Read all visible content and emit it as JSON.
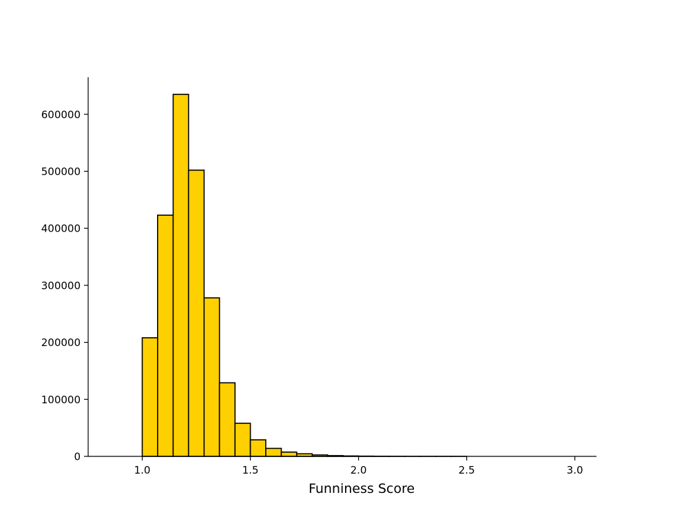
{
  "chart_data": {
    "type": "bar",
    "title": "",
    "xlabel": "Funniness Score",
    "ylabel": "",
    "xlim": [
      0.75,
      3.1
    ],
    "ylim": [
      0,
      665000
    ],
    "grid": false,
    "legend": "none",
    "bar_color": "#FFD000",
    "edge_color": "#000000",
    "x_ticks": [
      "1.0",
      "1.5",
      "2.0",
      "2.5",
      "3.0"
    ],
    "y_ticks": [
      "0",
      "100000",
      "200000",
      "300000",
      "400000",
      "500000",
      "600000"
    ],
    "bins": [
      {
        "start": 0.857,
        "end": 0.929,
        "count": 0
      },
      {
        "start": 0.929,
        "end": 1.0,
        "count": 0
      },
      {
        "start": 1.0,
        "end": 1.071,
        "count": 208000
      },
      {
        "start": 1.071,
        "end": 1.143,
        "count": 423000
      },
      {
        "start": 1.143,
        "end": 1.214,
        "count": 635000
      },
      {
        "start": 1.214,
        "end": 1.286,
        "count": 502000
      },
      {
        "start": 1.286,
        "end": 1.357,
        "count": 278000
      },
      {
        "start": 1.357,
        "end": 1.429,
        "count": 129000
      },
      {
        "start": 1.429,
        "end": 1.5,
        "count": 58000
      },
      {
        "start": 1.5,
        "end": 1.571,
        "count": 29000
      },
      {
        "start": 1.571,
        "end": 1.643,
        "count": 14000
      },
      {
        "start": 1.643,
        "end": 1.714,
        "count": 7500
      },
      {
        "start": 1.714,
        "end": 1.786,
        "count": 4500
      },
      {
        "start": 1.786,
        "end": 1.857,
        "count": 2500
      },
      {
        "start": 1.857,
        "end": 1.929,
        "count": 1300
      },
      {
        "start": 1.929,
        "end": 2.0,
        "count": 700
      },
      {
        "start": 2.0,
        "end": 2.071,
        "count": 400
      },
      {
        "start": 2.071,
        "end": 2.143,
        "count": 200
      },
      {
        "start": 2.143,
        "end": 2.214,
        "count": 100
      },
      {
        "start": 2.214,
        "end": 2.286,
        "count": 50
      },
      {
        "start": 2.286,
        "end": 2.357,
        "count": 30
      },
      {
        "start": 2.357,
        "end": 2.429,
        "count": 20
      },
      {
        "start": 2.429,
        "end": 2.5,
        "count": 10
      },
      {
        "start": 2.5,
        "end": 2.571,
        "count": 5
      },
      {
        "start": 2.571,
        "end": 2.643,
        "count": 3
      },
      {
        "start": 2.643,
        "end": 2.714,
        "count": 2
      },
      {
        "start": 2.714,
        "end": 2.786,
        "count": 1
      },
      {
        "start": 2.786,
        "end": 2.857,
        "count": 1
      },
      {
        "start": 2.857,
        "end": 2.929,
        "count": 1
      },
      {
        "start": 2.929,
        "end": 3.0,
        "count": 1
      },
      {
        "start": 3.0,
        "end": 3.071,
        "count": 1
      }
    ]
  }
}
